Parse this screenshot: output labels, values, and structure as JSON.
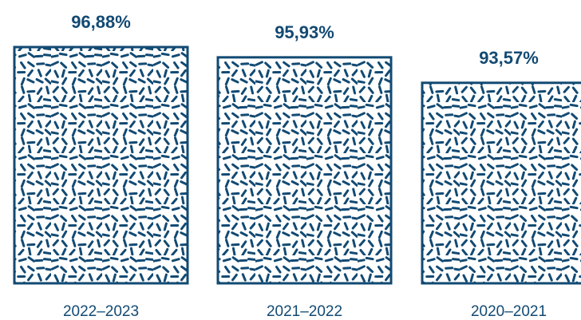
{
  "chart_data": {
    "type": "bar",
    "categories": [
      "2022–2023",
      "2021–2022",
      "2020–2021"
    ],
    "values": [
      96.88,
      95.93,
      93.57
    ],
    "value_labels": [
      "96,88%",
      "95,93%",
      "93,57%"
    ],
    "value_format": "percent",
    "decimal_separator": ",",
    "title": "",
    "xlabel": "",
    "ylabel": "",
    "grid": false,
    "legend": "none",
    "bar_fill": "pattern-dashes",
    "colors": {
      "bar": "#124a73",
      "value_label": "#124a73",
      "category_label": "#124a73",
      "background": "#ffffff"
    }
  }
}
